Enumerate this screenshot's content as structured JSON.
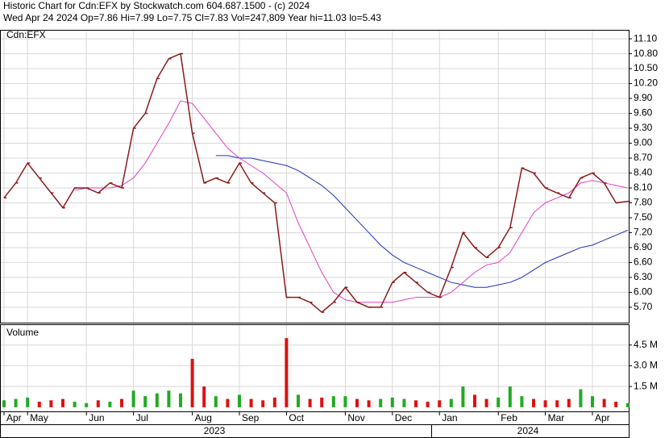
{
  "header": {
    "line1": "Historic Chart for Cdn:EFX by Stockwatch.com 604.687.1500 - (c) 2024",
    "line2": "Wed Apr 24 2024  Op=7.86  Hi=7.99  Lo=7.75  Cl=7.83  Vol=247,809  Year hi=11.03  lo=5.43"
  },
  "chart_data": {
    "type": "stock",
    "symbol_label": "Cdn:EFX",
    "grid": true,
    "categories": [
      "Apr",
      null,
      "May",
      null,
      null,
      null,
      null,
      "Jun",
      null,
      null,
      null,
      "Jul",
      null,
      null,
      null,
      null,
      "Aug",
      null,
      null,
      null,
      "Sep",
      null,
      null,
      null,
      "Oct",
      null,
      null,
      null,
      null,
      "Nov",
      null,
      null,
      null,
      "Dec",
      null,
      null,
      null,
      "Jan",
      null,
      null,
      null,
      null,
      "Feb",
      null,
      null,
      null,
      "Mar",
      null,
      null,
      null,
      "Apr",
      null,
      null,
      null
    ],
    "years": [
      "2023",
      "2024"
    ],
    "ylim": [
      5.39,
      11.28
    ],
    "yticks": [
      {
        "value": 5.7,
        "label": "5.70"
      },
      {
        "value": 6.0,
        "label": "6.00"
      },
      {
        "value": 6.3,
        "label": "6.30"
      },
      {
        "value": 6.6,
        "label": "6.60"
      },
      {
        "value": 6.9,
        "label": "6.90"
      },
      {
        "value": 7.2,
        "label": "7.20"
      },
      {
        "value": 7.5,
        "label": "7.50"
      },
      {
        "value": 7.8,
        "label": "7.80"
      },
      {
        "value": 8.1,
        "label": "8.10"
      },
      {
        "value": 8.4,
        "label": "8.40"
      },
      {
        "value": 8.7,
        "label": "8.70"
      },
      {
        "value": 9.0,
        "label": "9.00"
      },
      {
        "value": 9.3,
        "label": "9.30"
      },
      {
        "value": 9.6,
        "label": "9.60"
      },
      {
        "value": 9.9,
        "label": "9.90"
      },
      {
        "value": 10.2,
        "label": "10.20"
      },
      {
        "value": 10.5,
        "label": "10.50"
      },
      {
        "value": 10.8,
        "label": "10.80"
      },
      {
        "value": 11.1,
        "label": "11.10"
      }
    ],
    "price": {
      "color": "#8b1a1a",
      "values": [
        7.9,
        8.2,
        8.6,
        8.3,
        8.0,
        7.7,
        8.1,
        8.1,
        8.0,
        8.2,
        8.1,
        9.3,
        9.6,
        10.3,
        10.7,
        10.8,
        9.2,
        8.2,
        8.3,
        8.2,
        8.6,
        8.2,
        8.0,
        7.8,
        5.9,
        5.9,
        5.8,
        5.6,
        5.8,
        6.1,
        5.8,
        5.7,
        5.7,
        6.2,
        6.4,
        6.2,
        6.0,
        5.9,
        6.5,
        7.2,
        6.9,
        6.7,
        6.9,
        7.3,
        8.5,
        8.4,
        8.1,
        8.0,
        7.9,
        8.3,
        8.4,
        8.2,
        7.8,
        7.83
      ]
    },
    "ma_short": {
      "color": "#e040c0",
      "values": [
        null,
        null,
        null,
        null,
        null,
        null,
        8.05,
        8.1,
        8.1,
        8.1,
        8.15,
        8.3,
        8.6,
        9.0,
        9.4,
        9.85,
        9.8,
        9.5,
        9.2,
        8.9,
        8.7,
        8.55,
        8.4,
        8.2,
        8.0,
        7.4,
        6.9,
        6.4,
        6.0,
        5.85,
        5.8,
        5.8,
        5.8,
        5.8,
        5.85,
        5.9,
        5.9,
        5.9,
        6.0,
        6.2,
        6.4,
        6.55,
        6.6,
        6.8,
        7.2,
        7.6,
        7.8,
        7.9,
        8.0,
        8.2,
        8.25,
        8.2,
        8.15,
        8.1
      ]
    },
    "ma_long": {
      "color": "#2030c0",
      "values": [
        null,
        null,
        null,
        null,
        null,
        null,
        null,
        null,
        null,
        null,
        null,
        null,
        null,
        null,
        null,
        null,
        null,
        null,
        8.75,
        8.75,
        8.7,
        8.7,
        8.65,
        8.6,
        8.55,
        8.45,
        8.3,
        8.15,
        7.95,
        7.7,
        7.45,
        7.2,
        6.95,
        6.75,
        6.6,
        6.5,
        6.4,
        6.3,
        6.2,
        6.15,
        6.1,
        6.1,
        6.15,
        6.2,
        6.3,
        6.45,
        6.6,
        6.7,
        6.8,
        6.9,
        6.95,
        7.05,
        7.15,
        7.25
      ]
    },
    "volume": {
      "title": "Volume",
      "up_color": "#22aa22",
      "down_color": "#dd1111",
      "ylim": [
        -0.3,
        6.0
      ],
      "yticks": [
        {
          "value": 1.5,
          "label": "1.5 M"
        },
        {
          "value": 3.0,
          "label": "3.0 M"
        },
        {
          "value": 4.5,
          "label": "4.5 M"
        }
      ],
      "values": [
        0.5,
        0.6,
        0.7,
        0.4,
        0.5,
        0.6,
        0.4,
        0.3,
        0.5,
        0.4,
        0.6,
        1.2,
        0.8,
        1.0,
        1.2,
        1.0,
        3.5,
        1.5,
        0.8,
        0.6,
        0.9,
        0.6,
        0.5,
        0.7,
        5.0,
        0.9,
        0.6,
        0.7,
        0.8,
        0.8,
        0.6,
        0.5,
        0.6,
        0.7,
        0.6,
        0.5,
        0.4,
        0.5,
        0.6,
        1.5,
        0.9,
        0.6,
        0.7,
        1.5,
        0.8,
        0.6,
        0.5,
        0.5,
        0.6,
        1.3,
        0.8,
        0.6,
        0.4,
        0.3
      ]
    }
  }
}
